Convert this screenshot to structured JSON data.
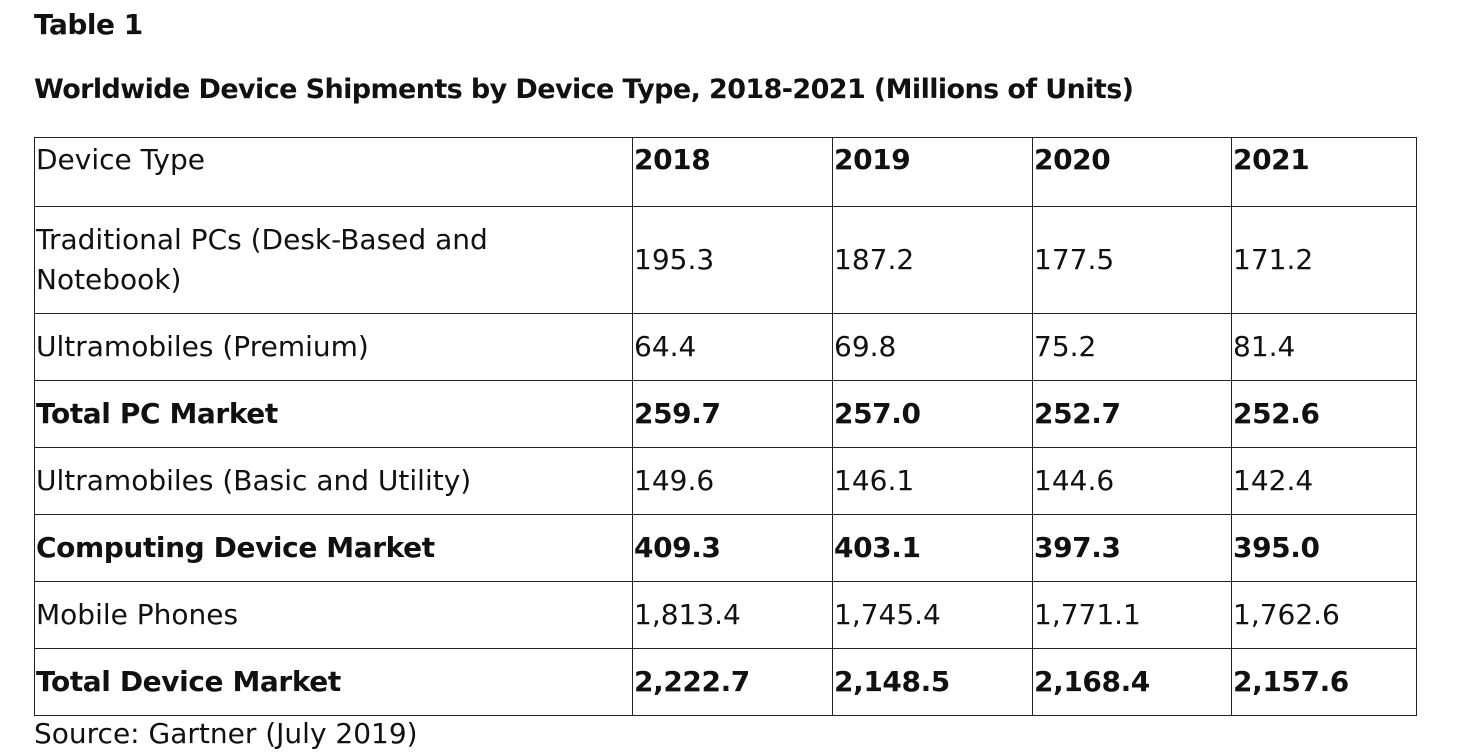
{
  "table_label": "Table 1",
  "title": "Worldwide Device Shipments by Device Type, 2018-2021 (Millions of Units)",
  "columns": [
    "Device Type",
    "2018",
    "2019",
    "2020",
    "2021"
  ],
  "rows": [
    {
      "label": "Traditional PCs (Desk-Based and Notebook)",
      "values": [
        "195.3",
        "187.2",
        "177.5",
        "171.2"
      ],
      "bold": false
    },
    {
      "label": "Ultramobiles (Premium)",
      "values": [
        "64.4",
        "69.8",
        "75.2",
        "81.4"
      ],
      "bold": false
    },
    {
      "label": "Total PC Market",
      "values": [
        "259.7",
        "257.0",
        "252.7",
        "252.6"
      ],
      "bold": true
    },
    {
      "label": "Ultramobiles (Basic and Utility)",
      "values": [
        "149.6",
        "146.1",
        "144.6",
        "142.4"
      ],
      "bold": false
    },
    {
      "label": "Computing Device Market",
      "values": [
        "409.3",
        "403.1",
        "397.3",
        "395.0"
      ],
      "bold": true
    },
    {
      "label": "Mobile Phones",
      "values": [
        "1,813.4",
        "1,745.4",
        "1,771.1",
        "1,762.6"
      ],
      "bold": false
    },
    {
      "label": "Total Device Market",
      "values": [
        "2,222.7",
        "2,148.5",
        "2,168.4",
        "2,157.6"
      ],
      "bold": true
    }
  ],
  "source": "Source: Gartner (July 2019)"
}
